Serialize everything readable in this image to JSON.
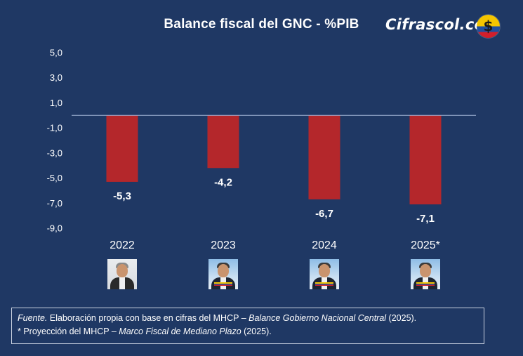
{
  "title": "Balance fiscal del GNC - %PIB",
  "brand": {
    "name": "Cifrascol.com",
    "badge_symbol": "$"
  },
  "colors": {
    "background": "#1f3864",
    "bar": "#b4272b",
    "zero_line": "#9fb2d4",
    "text": "#ffffff"
  },
  "chart_data": {
    "type": "bar",
    "categories": [
      "2022",
      "2023",
      "2024",
      "2025*"
    ],
    "values": [
      -5.3,
      -4.2,
      -6.7,
      -7.1
    ],
    "value_labels": [
      "-5,3",
      "-4,2",
      "-6,7",
      "-7,1"
    ],
    "title": "Balance fiscal del GNC - %PIB",
    "xlabel": "",
    "ylabel": "",
    "ylim": [
      -9.0,
      5.0
    ],
    "yticks": [
      5.0,
      3.0,
      1.0,
      -1.0,
      -3.0,
      -5.0,
      -7.0,
      -9.0
    ],
    "ytick_labels": [
      "5,0",
      "3,0",
      "1,0",
      "-1,0",
      "-3,0",
      "-5,0",
      "-7,0",
      "-9,0"
    ],
    "grid": false,
    "legend": "none"
  },
  "portraits": [
    {
      "year": "2022",
      "icon": "president-portrait-icon"
    },
    {
      "year": "2023",
      "icon": "president-portrait-icon"
    },
    {
      "year": "2024",
      "icon": "president-portrait-icon"
    },
    {
      "year": "2025*",
      "icon": "president-portrait-icon"
    }
  ],
  "source": {
    "line1_label": "Fuente.",
    "line1_text": " Elaboración propia con base en cifras del MHCP – ",
    "line1_doc": "Balance Gobierno Nacional Central",
    "line1_year": " (2025).",
    "line2_text": "* Proyección del MHCP – ",
    "line2_doc": "Marco Fiscal de Mediano Plazo",
    "line2_year": " (2025)."
  }
}
